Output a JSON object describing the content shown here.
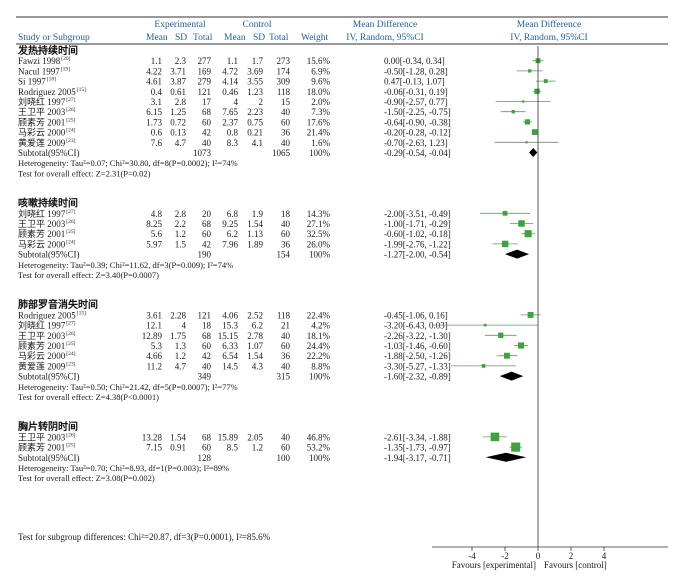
{
  "header": {
    "experimental": "Experimental",
    "control": "Control",
    "md_text": "Mean Difference",
    "md_plot": "Mean Difference",
    "study": "Study or Subgroup",
    "mean": "Mean",
    "sd": "SD",
    "total": "Total",
    "weight": "Weight",
    "method": "IV, Random, 95%CI"
  },
  "overall_test": "Test for subgroup differences: Chi²=20.87, df=3(P=0.0001), I²=85.6%",
  "chart_data": {
    "type": "forest",
    "x_ticks": [
      -4,
      -2,
      0,
      2,
      4
    ],
    "xlim": [
      -5,
      5
    ],
    "favours_left": "Favours [experimental]",
    "favours_right": "Favours [control]",
    "subgroups": [
      {
        "title": "发热持续时间",
        "studies": [
          {
            "study": "Fawzi 1998",
            "ref": "[20]",
            "em": "1.1",
            "esd": "2.3",
            "en": "277",
            "cm": "1.1",
            "csd": "1.7",
            "cn": "273",
            "weight": "15.6%",
            "ci_text": "0.00[-0.34, 0.34]",
            "md": 0.0,
            "lo": -0.34,
            "hi": 0.34,
            "w": 15.6
          },
          {
            "study": "Nacul 1997",
            "ref": "[19]",
            "em": "4.22",
            "esd": "3.71",
            "en": "169",
            "cm": "4.72",
            "csd": "3.69",
            "cn": "174",
            "weight": "6.9%",
            "ci_text": "-0.50[-1.28, 0.28]",
            "md": -0.5,
            "lo": -1.28,
            "hi": 0.28,
            "w": 6.9
          },
          {
            "study": "Si 1997",
            "ref": "[18]",
            "em": "4.61",
            "esd": "3.87",
            "en": "279",
            "cm": "4.14",
            "csd": "3.55",
            "cn": "309",
            "weight": "9.6%",
            "ci_text": "0.47[-0.13, 1.07]",
            "md": 0.47,
            "lo": -0.13,
            "hi": 1.07,
            "w": 9.6
          },
          {
            "study": "Rodriguez 2005",
            "ref": "[15]",
            "em": "0.4",
            "esd": "0.61",
            "en": "121",
            "cm": "0.46",
            "csd": "1.23",
            "cn": "118",
            "weight": "18.0%",
            "ci_text": "-0.06[-0.31, 0.19]",
            "md": -0.06,
            "lo": -0.31,
            "hi": 0.19,
            "w": 18.0
          },
          {
            "study": "刘晓红 1997",
            "ref": "[27]",
            "em": "3.1",
            "esd": "2.8",
            "en": "17",
            "cm": "4",
            "csd": "2",
            "cn": "15",
            "weight": "2.0%",
            "ci_text": "-0.90[-2.57, 0.77]",
            "md": -0.9,
            "lo": -2.57,
            "hi": 0.77,
            "w": 2.0
          },
          {
            "study": "王卫平 2003",
            "ref": "[26]",
            "em": "6.15",
            "esd": "1.25",
            "en": "68",
            "cm": "7.65",
            "csd": "2.23",
            "cn": "40",
            "weight": "7.3%",
            "ci_text": "-1.50[-2.25, -0.75]",
            "md": -1.5,
            "lo": -2.25,
            "hi": -0.75,
            "w": 7.3
          },
          {
            "study": "顾素芳 2001",
            "ref": "[25]",
            "em": "1.73",
            "esd": "0.72",
            "en": "60",
            "cm": "2.37",
            "csd": "0.75",
            "cn": "60",
            "weight": "17.6%",
            "ci_text": "-0.64[-0.90, -0.38]",
            "md": -0.64,
            "lo": -0.9,
            "hi": -0.38,
            "w": 17.6
          },
          {
            "study": "马彩云 2000",
            "ref": "[24]",
            "em": "0.6",
            "esd": "0.13",
            "en": "42",
            "cm": "0.8",
            "csd": "0.21",
            "cn": "36",
            "weight": "21.4%",
            "ci_text": "-0.20[-0.28, -0.12]",
            "md": -0.2,
            "lo": -0.28,
            "hi": -0.12,
            "w": 21.4
          },
          {
            "study": "黄爱莲 2009",
            "ref": "[23]",
            "em": "7.6",
            "esd": "4.7",
            "en": "40",
            "cm": "8.3",
            "csd": "4.1",
            "cn": "40",
            "weight": "1.6%",
            "ci_text": "-0.70[-2.63, 1.23]",
            "md": -0.7,
            "lo": -2.63,
            "hi": 1.23,
            "w": 1.6
          }
        ],
        "subtotal": {
          "label": "Subtotal(95%CI)",
          "en": "1073",
          "cn": "1065",
          "weight": "100%",
          "ci_text": "-0.29[-0.54, -0.04]",
          "md": -0.29,
          "lo": -0.54,
          "hi": -0.04
        },
        "heterogeneity": "Heterogeneity: Tau²=0.07; Chi²=30.80, df=8(P=0.0002); I²=74%",
        "effect": "Test for overall effect: Z=2.31(P=0.02)"
      },
      {
        "title": "咳嗽持续时间",
        "studies": [
          {
            "study": "刘晓红 1997",
            "ref": "[27]",
            "em": "4.8",
            "esd": "2.8",
            "en": "20",
            "cm": "6.8",
            "csd": "1.9",
            "cn": "18",
            "weight": "14.3%",
            "ci_text": "-2.00[-3.51, -0.49]",
            "md": -2.0,
            "lo": -3.51,
            "hi": -0.49,
            "w": 14.3
          },
          {
            "study": "王卫平 2003",
            "ref": "[26]",
            "em": "8.25",
            "esd": "2.2",
            "en": "68",
            "cm": "9.25",
            "csd": "1.54",
            "cn": "40",
            "weight": "27.1%",
            "ci_text": "-1.00[-1.71, -0.29]",
            "md": -1.0,
            "lo": -1.71,
            "hi": -0.29,
            "w": 27.1
          },
          {
            "study": "顾素芳 2001",
            "ref": "[25]",
            "em": "5.6",
            "esd": "1.2",
            "en": "60",
            "cm": "6.2",
            "csd": "1.13",
            "cn": "60",
            "weight": "32.5%",
            "ci_text": "-0.60[-1.02, -0.18]",
            "md": -0.6,
            "lo": -1.02,
            "hi": -0.18,
            "w": 32.5
          },
          {
            "study": "马彩云 2000",
            "ref": "[24]",
            "em": "5.97",
            "esd": "1.5",
            "en": "42",
            "cm": "7.96",
            "csd": "1.89",
            "cn": "36",
            "weight": "26.0%",
            "ci_text": "-1.99[-2.76, -1.22]",
            "md": -1.99,
            "lo": -2.76,
            "hi": -1.22,
            "w": 26.0
          }
        ],
        "subtotal": {
          "label": "Subtotal(95%CI)",
          "en": "190",
          "cn": "154",
          "weight": "100%",
          "ci_text": "-1.27[-2.00, -0.54]",
          "md": -1.27,
          "lo": -2.0,
          "hi": -0.54
        },
        "heterogeneity": "Heterogeneity: Tau²=0.39; Chi²=11.62, df=3(P=0.009); I²=74%",
        "effect": "Test for overall effect: Z=3.40(P=0.0007)"
      },
      {
        "title": "肺部罗音消失时间",
        "studies": [
          {
            "study": "Rodriguez 2005",
            "ref": "[15]",
            "em": "3.61",
            "esd": "2.28",
            "en": "121",
            "cm": "4.06",
            "csd": "2.52",
            "cn": "118",
            "weight": "22.4%",
            "ci_text": "-0.45[-1.06, 0.16]",
            "md": -0.45,
            "lo": -1.06,
            "hi": 0.16,
            "w": 22.4
          },
          {
            "study": "刘晓红 1997",
            "ref": "[27]",
            "em": "12.1",
            "esd": "4",
            "en": "18",
            "cm": "15.3",
            "csd": "6.2",
            "cn": "21",
            "weight": "4.2%",
            "ci_text": "-3.20[-6.43, 0.03]",
            "md": -3.2,
            "lo": -6.43,
            "hi": 0.03,
            "w": 4.2
          },
          {
            "study": "王卫平 2003",
            "ref": "[26]",
            "em": "12.89",
            "esd": "1.75",
            "en": "68",
            "cm": "15.15",
            "csd": "2.78",
            "cn": "40",
            "weight": "18.1%",
            "ci_text": "-2.26[-3.22, -1.30]",
            "md": -2.26,
            "lo": -3.22,
            "hi": -1.3,
            "w": 18.1
          },
          {
            "study": "顾素芳 2001",
            "ref": "[25]",
            "em": "5.3",
            "esd": "1.3",
            "en": "60",
            "cm": "6.33",
            "csd": "1.07",
            "cn": "60",
            "weight": "24.4%",
            "ci_text": "-1.03[-1.46, -0.60]",
            "md": -1.03,
            "lo": -1.46,
            "hi": -0.6,
            "w": 24.4
          },
          {
            "study": "马彩云 2000",
            "ref": "[24]",
            "em": "4.66",
            "esd": "1.2",
            "en": "42",
            "cm": "6.54",
            "csd": "1.54",
            "cn": "36",
            "weight": "22.2%",
            "ci_text": "-1.88[-2.50, -1.26]",
            "md": -1.88,
            "lo": -2.5,
            "hi": -1.26,
            "w": 22.2
          },
          {
            "study": "黄爱莲 2009",
            "ref": "[23]",
            "em": "11.2",
            "esd": "4.7",
            "en": "40",
            "cm": "14.5",
            "csd": "4.3",
            "cn": "40",
            "weight": "8.8%",
            "ci_text": "-3.30[-5.27, -1.33]",
            "md": -3.3,
            "lo": -5.27,
            "hi": -1.33,
            "w": 8.8
          }
        ],
        "subtotal": {
          "label": "Subtotal(95%CI)",
          "en": "349",
          "cn": "315",
          "weight": "100%",
          "ci_text": "-1.60[-2.32, -0.89]",
          "md": -1.6,
          "lo": -2.32,
          "hi": -0.89
        },
        "heterogeneity": "Heterogeneity: Tau²=0.50; Chi²=21.42, df=5(P=0.0007); I²=77%",
        "effect": "Test for overall effect: Z=4.38(P<0.0001)"
      },
      {
        "title": "胸片转阴时间",
        "studies": [
          {
            "study": "王卫平 2003",
            "ref": "[26]",
            "em": "13.28",
            "esd": "1.54",
            "en": "68",
            "cm": "15.89",
            "csd": "2.05",
            "cn": "40",
            "weight": "46.8%",
            "ci_text": "-2.61[-3.34, -1.88]",
            "md": -2.61,
            "lo": -3.34,
            "hi": -1.88,
            "w": 46.8
          },
          {
            "study": "顾素芳 2001",
            "ref": "[25]",
            "em": "7.15",
            "esd": "0.91",
            "en": "60",
            "cm": "8.5",
            "csd": "1.2",
            "cn": "60",
            "weight": "53.2%",
            "ci_text": "-1.35[-1.73, -0.97]",
            "md": -1.35,
            "lo": -1.73,
            "hi": -0.97,
            "w": 53.2
          }
        ],
        "subtotal": {
          "label": "Subtotal(95%CI)",
          "en": "128",
          "cn": "100",
          "weight": "100%",
          "ci_text": "-1.94[-3.17, -0.71]",
          "md": -1.94,
          "lo": -3.17,
          "hi": -0.71
        },
        "heterogeneity": "Heterogeneity: Tau²=0.70; Chi²=8.93, df=1(P=0.003); I²=89%",
        "effect": "Test for overall effect: Z=3.08(P=0.002)"
      }
    ]
  }
}
